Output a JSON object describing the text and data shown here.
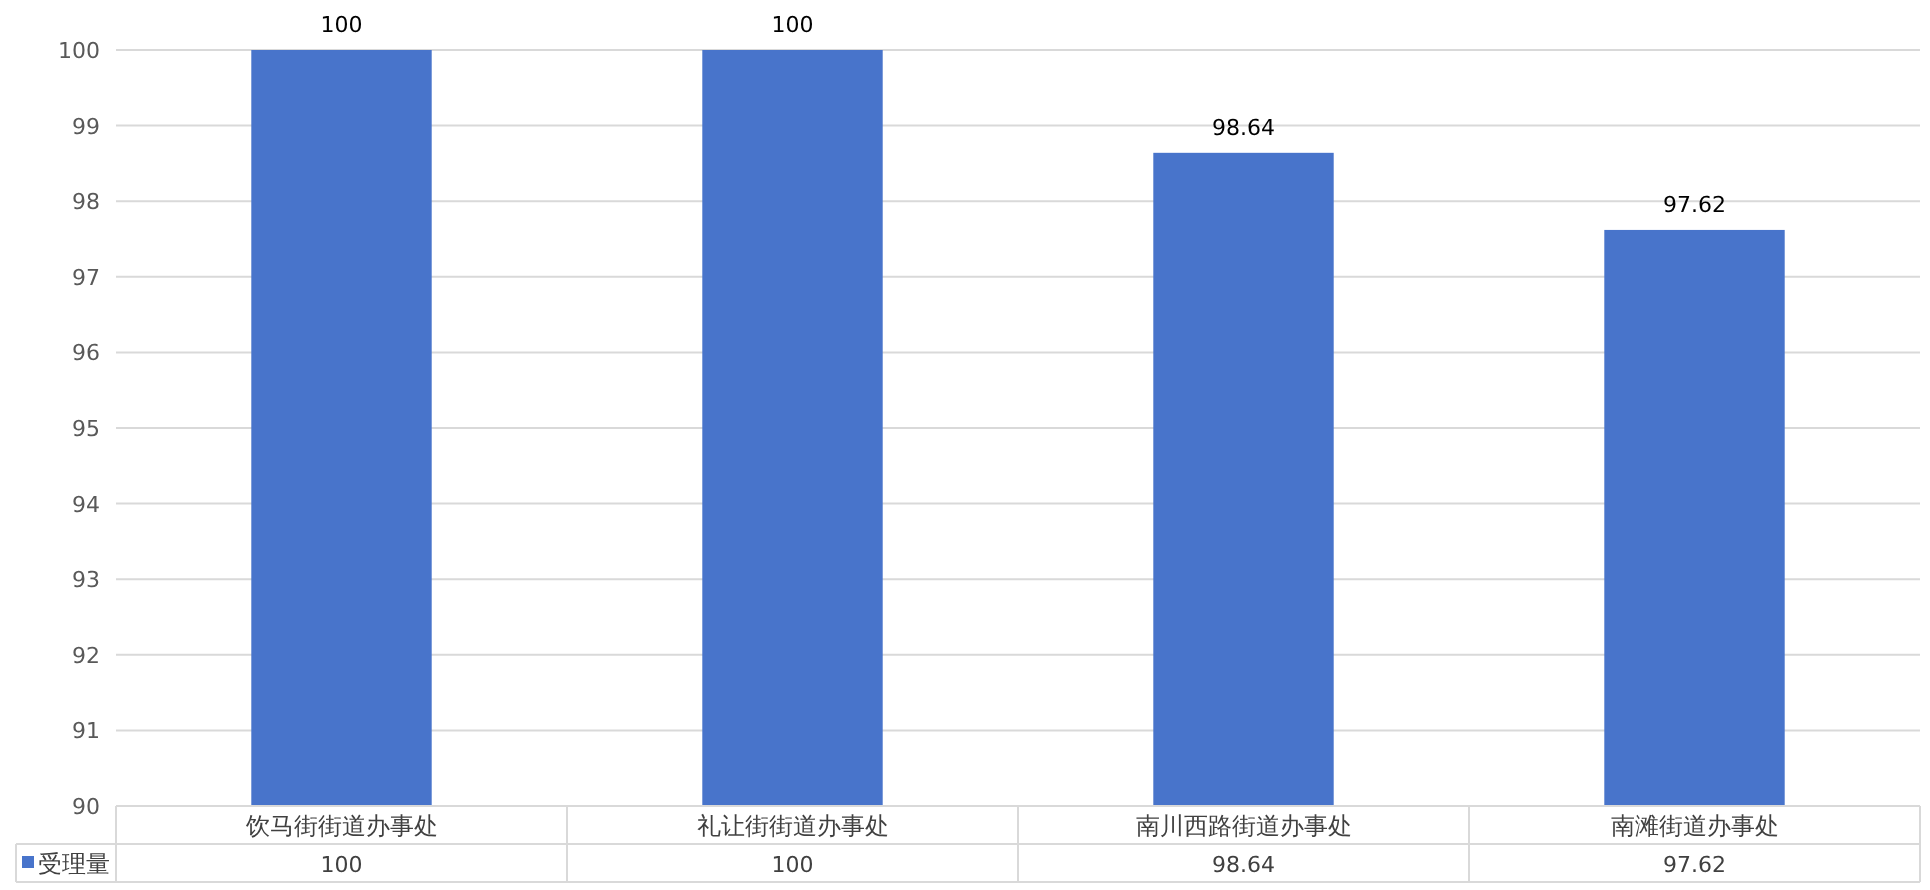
{
  "chart_data": {
    "type": "bar",
    "categories": [
      "饮马街街道办事处",
      "礼让街街道办事处",
      "南川西路街道办事处",
      "南滩街道办事处"
    ],
    "series": [
      {
        "name": "受理量",
        "color": "#4874cb",
        "values": [
          100,
          100,
          98.64,
          97.62
        ],
        "value_labels": [
          "100",
          "100",
          "98.64",
          "97.62"
        ]
      }
    ],
    "ylim": [
      90,
      100
    ],
    "yticks": [
      90,
      91,
      92,
      93,
      94,
      95,
      96,
      97,
      98,
      99,
      100
    ],
    "annotations": [
      "100",
      "100",
      "98.64",
      "97.62"
    ],
    "grid": "y",
    "data_labels": true,
    "legend": "bottom"
  }
}
